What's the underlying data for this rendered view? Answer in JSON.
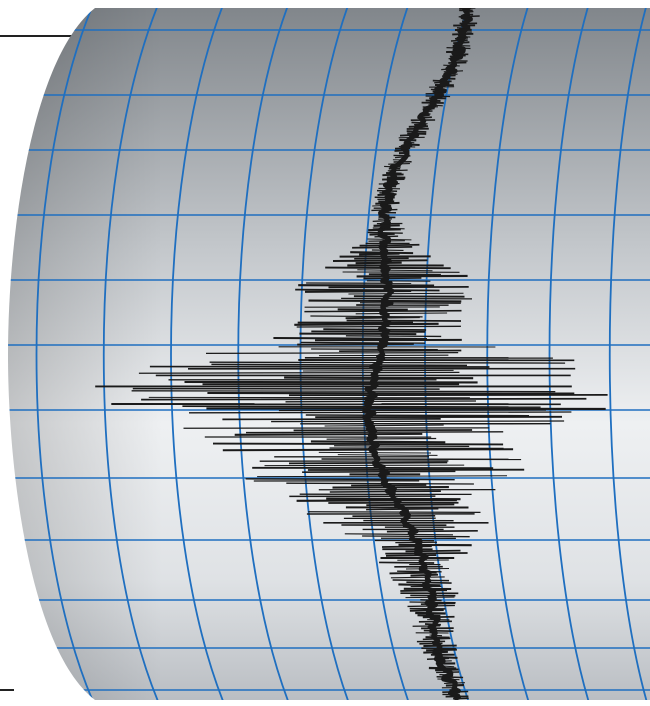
{
  "scene": {
    "subject": "seismograph-drum",
    "colors": {
      "background": "#ffffff",
      "paper_light": "#eceef0",
      "paper_mid": "#c9cdd1",
      "paper_dark": "#8d9196",
      "grid": "#1f6fc0",
      "trace": "#1a1a1a",
      "rule": "#222222"
    }
  }
}
